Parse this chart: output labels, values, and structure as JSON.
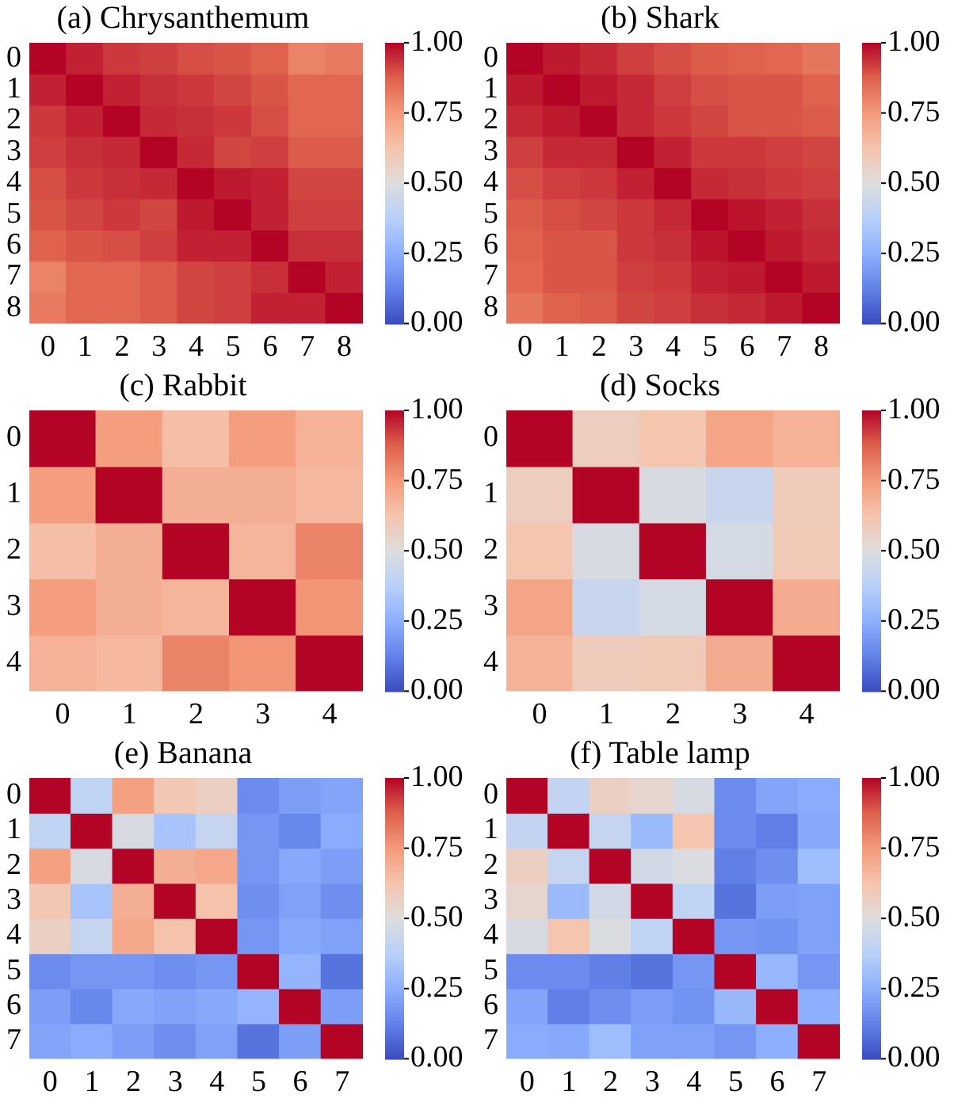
{
  "chart_data": [
    {
      "type": "heatmap",
      "title": "(a) Chrysanthemum",
      "categories": [
        "0",
        "1",
        "2",
        "3",
        "4",
        "5",
        "6",
        "7",
        "8"
      ],
      "y_categories": [
        "0",
        "1",
        "2",
        "3",
        "4",
        "5",
        "6",
        "7",
        "8"
      ],
      "cells": [
        [
          1,
          0.96,
          0.93,
          0.92,
          0.9,
          0.89,
          0.87,
          0.8,
          0.82
        ],
        [
          0.96,
          1,
          0.96,
          0.94,
          0.93,
          0.91,
          0.89,
          0.86,
          0.86
        ],
        [
          0.93,
          0.96,
          1,
          0.95,
          0.94,
          0.93,
          0.9,
          0.86,
          0.86
        ],
        [
          0.92,
          0.94,
          0.95,
          1,
          0.95,
          0.91,
          0.92,
          0.88,
          0.88
        ],
        [
          0.9,
          0.93,
          0.94,
          0.95,
          1,
          0.97,
          0.96,
          0.91,
          0.91
        ],
        [
          0.89,
          0.91,
          0.93,
          0.91,
          0.97,
          1,
          0.96,
          0.92,
          0.92
        ],
        [
          0.87,
          0.89,
          0.9,
          0.92,
          0.96,
          0.96,
          1,
          0.94,
          0.94
        ],
        [
          0.8,
          0.86,
          0.86,
          0.88,
          0.91,
          0.92,
          0.94,
          1,
          0.96
        ],
        [
          0.82,
          0.86,
          0.86,
          0.88,
          0.91,
          0.92,
          0.96,
          0.96,
          1
        ]
      ],
      "clim": [
        0,
        1
      ],
      "cticks": [
        {
          "value": 0,
          "label": "0.00"
        },
        {
          "value": 0.25,
          "label": "0.25"
        },
        {
          "value": 0.5,
          "label": "0.50"
        },
        {
          "value": 0.75,
          "label": "0.75"
        },
        {
          "value": 1,
          "label": "1.00"
        }
      ]
    },
    {
      "type": "heatmap",
      "title": "(b) Shark",
      "categories": [
        "0",
        "1",
        "2",
        "3",
        "4",
        "5",
        "6",
        "7",
        "8"
      ],
      "y_categories": [
        "0",
        "1",
        "2",
        "3",
        "4",
        "5",
        "6",
        "7",
        "8"
      ],
      "cells": [
        [
          1,
          0.97,
          0.95,
          0.92,
          0.9,
          0.88,
          0.87,
          0.86,
          0.83
        ],
        [
          0.97,
          1,
          0.97,
          0.95,
          0.92,
          0.9,
          0.89,
          0.89,
          0.87
        ],
        [
          0.95,
          0.97,
          1,
          0.95,
          0.93,
          0.91,
          0.89,
          0.89,
          0.88
        ],
        [
          0.92,
          0.95,
          0.95,
          1,
          0.96,
          0.93,
          0.93,
          0.92,
          0.91
        ],
        [
          0.9,
          0.92,
          0.93,
          0.96,
          1,
          0.95,
          0.94,
          0.93,
          0.92
        ],
        [
          0.88,
          0.9,
          0.91,
          0.93,
          0.95,
          1,
          0.98,
          0.96,
          0.94
        ],
        [
          0.87,
          0.89,
          0.89,
          0.93,
          0.94,
          0.98,
          1,
          0.97,
          0.95
        ],
        [
          0.86,
          0.89,
          0.89,
          0.92,
          0.93,
          0.96,
          0.97,
          1,
          0.97
        ],
        [
          0.83,
          0.87,
          0.88,
          0.91,
          0.92,
          0.94,
          0.95,
          0.97,
          1
        ]
      ],
      "clim": [
        0,
        1
      ],
      "cticks": [
        {
          "value": 0,
          "label": "0.00"
        },
        {
          "value": 0.25,
          "label": "0.25"
        },
        {
          "value": 0.5,
          "label": "0.50"
        },
        {
          "value": 0.75,
          "label": "0.75"
        },
        {
          "value": 1,
          "label": "1.00"
        }
      ]
    },
    {
      "type": "heatmap",
      "title": "(c) Rabbit",
      "categories": [
        "0",
        "1",
        "2",
        "3",
        "4"
      ],
      "y_categories": [
        "0",
        "1",
        "2",
        "3",
        "4"
      ],
      "cells": [
        [
          1,
          0.74,
          0.64,
          0.74,
          0.68
        ],
        [
          0.74,
          1,
          0.69,
          0.69,
          0.66
        ],
        [
          0.64,
          0.69,
          1,
          0.67,
          0.8
        ],
        [
          0.74,
          0.69,
          0.67,
          1,
          0.76
        ],
        [
          0.68,
          0.66,
          0.8,
          0.76,
          1
        ]
      ],
      "clim": [
        0,
        1
      ],
      "cticks": [
        {
          "value": 0,
          "label": "0.00"
        },
        {
          "value": 0.25,
          "label": "0.25"
        },
        {
          "value": 0.5,
          "label": "0.50"
        },
        {
          "value": 0.75,
          "label": "0.75"
        },
        {
          "value": 1,
          "label": "1.00"
        }
      ]
    },
    {
      "type": "heatmap",
      "title": "(d) Socks",
      "categories": [
        "0",
        "1",
        "2",
        "3",
        "4"
      ],
      "y_categories": [
        "0",
        "1",
        "2",
        "3",
        "4"
      ],
      "cells": [
        [
          1,
          0.58,
          0.62,
          0.72,
          0.68
        ],
        [
          0.58,
          1,
          0.48,
          0.43,
          0.59
        ],
        [
          0.62,
          0.48,
          1,
          0.47,
          0.6
        ],
        [
          0.72,
          0.43,
          0.47,
          1,
          0.7
        ],
        [
          0.68,
          0.59,
          0.6,
          0.7,
          1
        ]
      ],
      "clim": [
        0,
        1
      ],
      "cticks": [
        {
          "value": 0,
          "label": "0.00"
        },
        {
          "value": 0.25,
          "label": "0.25"
        },
        {
          "value": 0.5,
          "label": "0.50"
        },
        {
          "value": 0.75,
          "label": "0.75"
        },
        {
          "value": 1,
          "label": "1.00"
        }
      ]
    },
    {
      "type": "heatmap",
      "title": "(e) Banana",
      "categories": [
        "0",
        "1",
        "2",
        "3",
        "4",
        "5",
        "6",
        "7"
      ],
      "y_categories": [
        "0",
        "1",
        "2",
        "3",
        "4",
        "5",
        "6",
        "7"
      ],
      "cells": [
        [
          1,
          0.4,
          0.73,
          0.61,
          0.57,
          0.15,
          0.2,
          0.22
        ],
        [
          0.4,
          1,
          0.48,
          0.33,
          0.42,
          0.18,
          0.14,
          0.24
        ],
        [
          0.73,
          0.48,
          1,
          0.69,
          0.71,
          0.18,
          0.23,
          0.2
        ],
        [
          0.61,
          0.33,
          0.69,
          1,
          0.63,
          0.16,
          0.21,
          0.16
        ],
        [
          0.57,
          0.42,
          0.71,
          0.63,
          1,
          0.18,
          0.23,
          0.21
        ],
        [
          0.15,
          0.18,
          0.18,
          0.16,
          0.18,
          1,
          0.27,
          0.09
        ],
        [
          0.2,
          0.14,
          0.23,
          0.21,
          0.23,
          0.27,
          1,
          0.2
        ],
        [
          0.22,
          0.24,
          0.2,
          0.16,
          0.21,
          0.09,
          0.2,
          1
        ]
      ],
      "clim": [
        0,
        1
      ],
      "cticks": [
        {
          "value": 0,
          "label": "0.00"
        },
        {
          "value": 0.25,
          "label": "0.25"
        },
        {
          "value": 0.5,
          "label": "0.50"
        },
        {
          "value": 0.75,
          "label": "0.75"
        },
        {
          "value": 1,
          "label": "1.00"
        }
      ]
    },
    {
      "type": "heatmap",
      "title": "(f) Table lamp",
      "categories": [
        "0",
        "1",
        "2",
        "3",
        "4",
        "5",
        "6",
        "7"
      ],
      "y_categories": [
        "0",
        "1",
        "2",
        "3",
        "4",
        "5",
        "6",
        "7"
      ],
      "cells": [
        [
          1,
          0.41,
          0.57,
          0.54,
          0.48,
          0.15,
          0.22,
          0.24
        ],
        [
          0.41,
          1,
          0.42,
          0.29,
          0.62,
          0.15,
          0.12,
          0.23
        ],
        [
          0.57,
          0.42,
          1,
          0.46,
          0.49,
          0.12,
          0.16,
          0.3
        ],
        [
          0.54,
          0.29,
          0.46,
          1,
          0.4,
          0.09,
          0.2,
          0.21
        ],
        [
          0.48,
          0.62,
          0.49,
          0.4,
          1,
          0.18,
          0.17,
          0.21
        ],
        [
          0.15,
          0.15,
          0.12,
          0.09,
          0.18,
          1,
          0.28,
          0.18
        ],
        [
          0.22,
          0.12,
          0.16,
          0.2,
          0.17,
          0.28,
          1,
          0.25
        ],
        [
          0.24,
          0.23,
          0.3,
          0.21,
          0.21,
          0.18,
          0.25,
          1
        ]
      ],
      "clim": [
        0,
        1
      ],
      "cticks": [
        {
          "value": 0,
          "label": "0.00"
        },
        {
          "value": 0.25,
          "label": "0.25"
        },
        {
          "value": 0.5,
          "label": "0.50"
        },
        {
          "value": 0.75,
          "label": "0.75"
        },
        {
          "value": 1,
          "label": "1.00"
        }
      ]
    }
  ]
}
